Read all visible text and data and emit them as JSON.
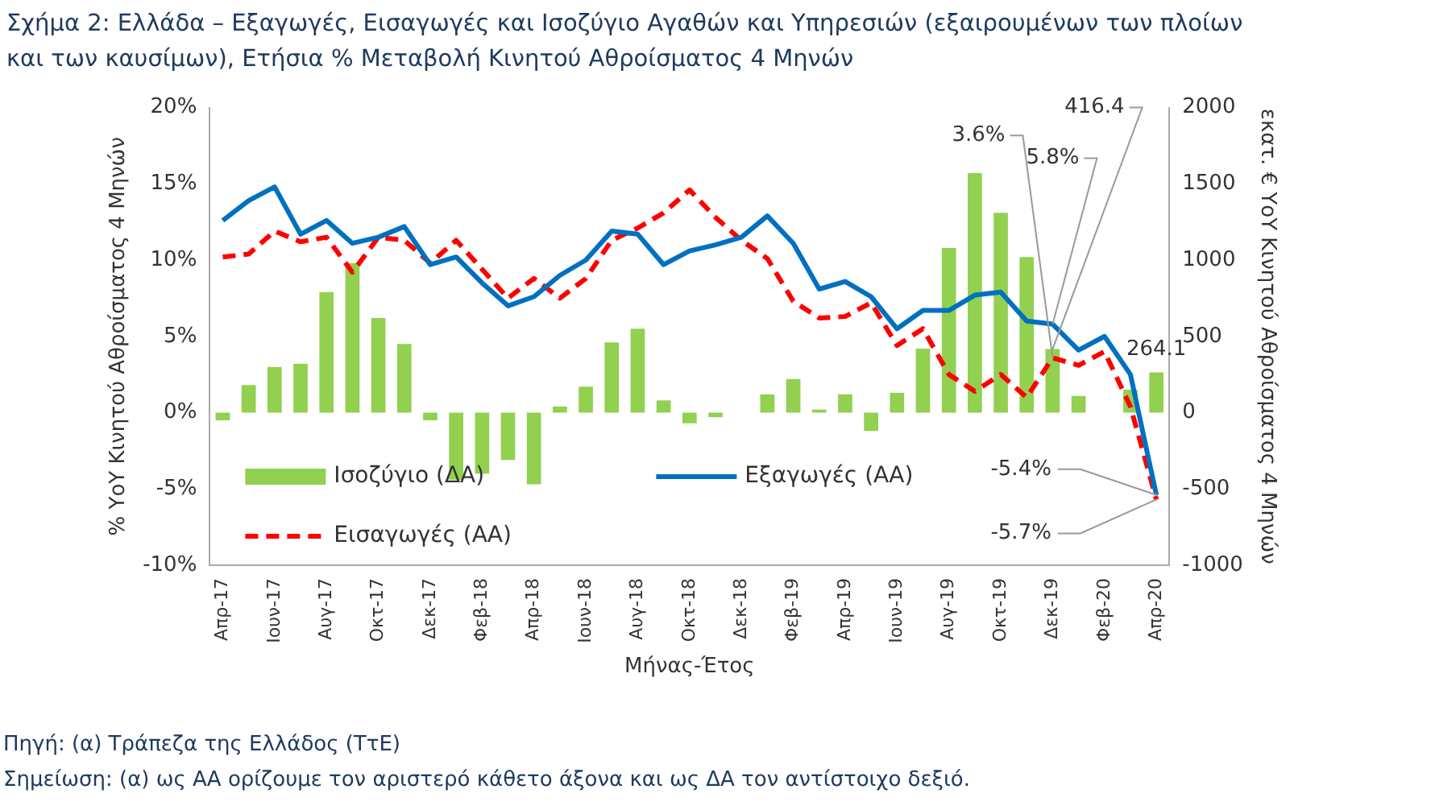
{
  "chart_data": {
    "type": "line",
    "title": "Σχήμα 2: Ελλάδα – Εξαγωγές, Εισαγωγές και Ισοζύγιο Αγαθών και Υπηρεσιών (εξαιρουμένων των πλοίων και των καυσίμων), Ετήσια % Μεταβολή Κινητού Αθροίσματος 4 Μηνών",
    "xlabel": "Μήνας-Έτος",
    "ylabel": "% ΥοΥ Κινητού Αθροίσματος 4 Μηνών",
    "y2label": "εκατ. € ΥοΥ Κινητού Αθροίσματος 4 Μηνών",
    "categories": [
      "Απρ-17",
      null,
      "Ιουν-17",
      null,
      "Αυγ-17",
      null,
      "Οκτ-17",
      null,
      "Δεκ-17",
      null,
      "Φεβ-18",
      null,
      "Απρ-18",
      null,
      "Ιουν-18",
      null,
      "Αυγ-18",
      null,
      "Οκτ-18",
      null,
      "Δεκ-18",
      null,
      "Φεβ-19",
      null,
      "Απρ-19",
      null,
      "Ιουν-19",
      null,
      "Αυγ-19",
      null,
      "Οκτ-19",
      null,
      "Δεκ-19",
      null,
      "Φεβ-20",
      null,
      "Απρ-20"
    ],
    "series": [
      {
        "name": "Ισοζύγιο (ΔΑ)",
        "type": "bar",
        "axis": "y2",
        "color": "#92d050",
        "values": [
          -50,
          180,
          300,
          320,
          790,
          980,
          620,
          450,
          -50,
          -440,
          -400,
          -310,
          -470,
          40,
          170,
          460,
          550,
          80,
          -70,
          -30,
          0,
          120,
          220,
          20,
          120,
          -120,
          130,
          420,
          1080,
          1570,
          1310,
          1020,
          416.4,
          110,
          0,
          150,
          264.1
        ],
        "value_labels": [
          null,
          null,
          null,
          null,
          null,
          null,
          null,
          null,
          null,
          null,
          null,
          null,
          null,
          null,
          null,
          null,
          null,
          null,
          null,
          null,
          null,
          null,
          null,
          null,
          null,
          null,
          null,
          null,
          null,
          null,
          null,
          null,
          "416.4",
          null,
          null,
          null,
          "264.1"
        ]
      },
      {
        "name": "Εξαγωγές (ΑΑ)",
        "color": "#0070c0",
        "line_style": "solid",
        "values": [
          12.6,
          13.9,
          14.8,
          11.7,
          12.6,
          11.1,
          11.5,
          12.2,
          9.7,
          10.2,
          8.5,
          7.0,
          7.6,
          9.0,
          10.0,
          11.9,
          11.7,
          9.7,
          10.6,
          11.0,
          11.5,
          12.9,
          11.1,
          8.1,
          8.6,
          7.6,
          5.5,
          6.7,
          6.7,
          7.7,
          7.9,
          6.0,
          5.8,
          4.1,
          5.0,
          2.5,
          -5.4
        ],
        "value_labels": [
          null,
          null,
          null,
          null,
          null,
          null,
          null,
          null,
          null,
          null,
          null,
          null,
          null,
          null,
          null,
          null,
          null,
          null,
          null,
          null,
          null,
          null,
          null,
          null,
          null,
          null,
          null,
          null,
          null,
          null,
          null,
          null,
          "5.8%",
          null,
          null,
          null,
          "-5.4%"
        ]
      },
      {
        "name": "Εισαγωγές (ΑΑ)",
        "color": "#ff0000",
        "line_style": "dashed",
        "values": [
          10.2,
          10.4,
          11.9,
          11.2,
          11.5,
          9.2,
          11.5,
          11.3,
          9.8,
          11.3,
          9.4,
          7.5,
          8.8,
          7.5,
          8.8,
          11.3,
          12.1,
          13.1,
          14.6,
          12.8,
          11.3,
          10.1,
          7.3,
          6.2,
          6.3,
          7.2,
          4.4,
          5.5,
          2.5,
          1.4,
          2.5,
          1.0,
          3.6,
          3.1,
          4.0,
          0.4,
          -5.7
        ],
        "value_labels": [
          null,
          null,
          null,
          null,
          null,
          null,
          null,
          null,
          null,
          null,
          null,
          null,
          null,
          null,
          null,
          null,
          null,
          null,
          null,
          null,
          null,
          null,
          null,
          null,
          null,
          null,
          null,
          null,
          null,
          null,
          null,
          null,
          "3.6%",
          null,
          null,
          null,
          "-5.7%"
        ]
      }
    ],
    "ylim": [
      -10,
      20
    ],
    "yticks": [
      {
        "value": -10,
        "label": "-10%"
      },
      {
        "value": -5,
        "label": "-5%"
      },
      {
        "value": 0,
        "label": "0%"
      },
      {
        "value": 5,
        "label": "5%"
      },
      {
        "value": 10,
        "label": "10%"
      },
      {
        "value": 15,
        "label": "15%"
      },
      {
        "value": 20,
        "label": "20%"
      }
    ],
    "y2lim": [
      -1000,
      2000
    ],
    "y2ticks": [
      -1000,
      -500,
      0,
      500,
      1000,
      1500,
      2000
    ],
    "grid": false,
    "legend": "bottom left",
    "marker": "none",
    "annotations": [
      "Πηγή: (α) Τράπεζα της Ελλάδος (ΤτΕ)",
      "Σημείωση: (α) ως ΑΑ ορίζουμε τον αριστερό κάθετο άξονα και ως ΔΑ τον αντίστοιχο δεξιό."
    ]
  }
}
